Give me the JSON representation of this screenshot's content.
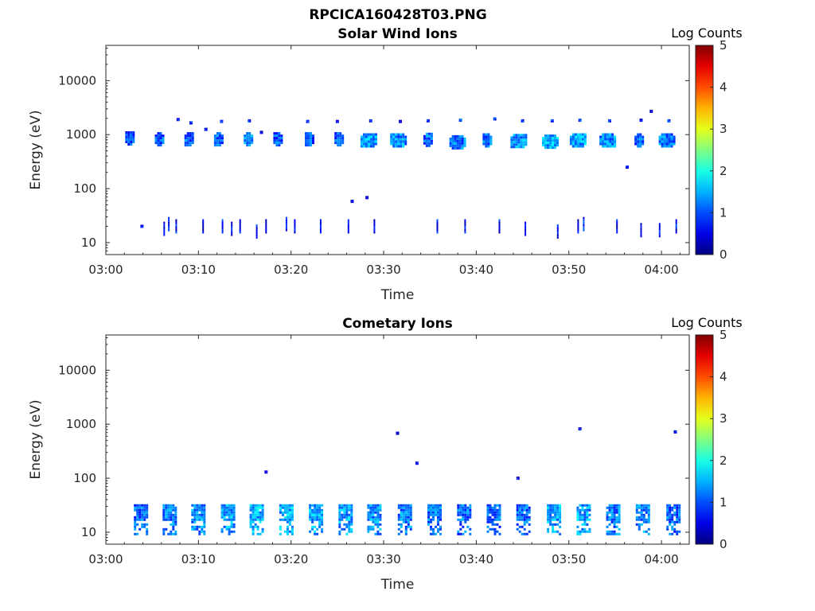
{
  "figure": {
    "title": "RPCICA160428T03.PNG"
  },
  "chart_data": [
    {
      "type": "heatmap",
      "title": "Solar Wind Ions",
      "xlabel": "Time",
      "ylabel": "Energy (eV)",
      "x_ticks": [
        "03:00",
        "03:10",
        "03:20",
        "03:30",
        "03:40",
        "03:50",
        "04:00"
      ],
      "y_ticks": [
        "10",
        "100",
        "1000",
        "10000"
      ],
      "y_scale": "log",
      "x_range_minutes": [
        0,
        63
      ],
      "y_range_eV": [
        6,
        45000
      ],
      "colorbar": {
        "label": "Log Counts",
        "ticks": [
          "0",
          "1",
          "2",
          "3",
          "4",
          "5"
        ],
        "range": [
          0,
          5
        ],
        "colormap": "jet"
      },
      "blobs": [
        {
          "t": 2.6,
          "e": 850,
          "s": "M",
          "v": 1.0
        },
        {
          "t": 5.8,
          "e": 820,
          "s": "M",
          "v": 1.0
        },
        {
          "t": 9.0,
          "e": 820,
          "s": "M",
          "v": 1.1
        },
        {
          "t": 12.2,
          "e": 820,
          "s": "M",
          "v": 1.1
        },
        {
          "t": 15.4,
          "e": 820,
          "s": "M",
          "v": 1.2
        },
        {
          "t": 18.6,
          "e": 820,
          "s": "M",
          "v": 1.0
        },
        {
          "t": 22.0,
          "e": 820,
          "s": "M",
          "v": 1.0
        },
        {
          "t": 25.2,
          "e": 820,
          "s": "M",
          "v": 1.0
        },
        {
          "t": 28.4,
          "e": 780,
          "s": "L",
          "v": 1.4
        },
        {
          "t": 31.6,
          "e": 780,
          "s": "L",
          "v": 1.3
        },
        {
          "t": 34.8,
          "e": 800,
          "s": "M",
          "v": 1.1
        },
        {
          "t": 38.0,
          "e": 720,
          "s": "L",
          "v": 1.2
        },
        {
          "t": 41.2,
          "e": 780,
          "s": "M",
          "v": 1.1
        },
        {
          "t": 44.6,
          "e": 760,
          "s": "L",
          "v": 1.3
        },
        {
          "t": 48.0,
          "e": 740,
          "s": "L",
          "v": 1.5
        },
        {
          "t": 51.0,
          "e": 780,
          "s": "L",
          "v": 1.4
        },
        {
          "t": 54.2,
          "e": 780,
          "s": "L",
          "v": 1.3
        },
        {
          "t": 57.6,
          "e": 780,
          "s": "M",
          "v": 1.1
        },
        {
          "t": 60.6,
          "e": 780,
          "s": "L",
          "v": 1.2
        },
        {
          "t": 7.8,
          "e": 1900,
          "s": "S",
          "v": 0.6
        },
        {
          "t": 9.2,
          "e": 1650,
          "s": "S",
          "v": 0.7
        },
        {
          "t": 12.5,
          "e": 1750,
          "s": "S",
          "v": 0.7
        },
        {
          "t": 15.5,
          "e": 1800,
          "s": "S",
          "v": 0.7
        },
        {
          "t": 21.8,
          "e": 1750,
          "s": "S",
          "v": 0.8
        },
        {
          "t": 25.0,
          "e": 1750,
          "s": "S",
          "v": 0.7
        },
        {
          "t": 28.6,
          "e": 1800,
          "s": "S",
          "v": 0.8
        },
        {
          "t": 31.8,
          "e": 1750,
          "s": "S",
          "v": 0.8
        },
        {
          "t": 34.8,
          "e": 1800,
          "s": "S",
          "v": 0.7
        },
        {
          "t": 38.3,
          "e": 1850,
          "s": "S",
          "v": 0.8
        },
        {
          "t": 42.0,
          "e": 1950,
          "s": "S",
          "v": 0.7
        },
        {
          "t": 45.0,
          "e": 1800,
          "s": "S",
          "v": 0.7
        },
        {
          "t": 48.2,
          "e": 1800,
          "s": "S",
          "v": 0.7
        },
        {
          "t": 51.2,
          "e": 1850,
          "s": "S",
          "v": 0.8
        },
        {
          "t": 54.4,
          "e": 1800,
          "s": "S",
          "v": 0.7
        },
        {
          "t": 57.8,
          "e": 1850,
          "s": "S",
          "v": 0.7
        },
        {
          "t": 60.8,
          "e": 1800,
          "s": "S",
          "v": 0.7
        },
        {
          "t": 10.8,
          "e": 1250,
          "s": "S",
          "v": 0.5
        },
        {
          "t": 16.8,
          "e": 1100,
          "s": "S",
          "v": 0.5
        },
        {
          "t": 58.9,
          "e": 2700,
          "s": "S",
          "v": 0.5
        },
        {
          "t": 56.3,
          "e": 250,
          "s": "S",
          "v": 0.5
        },
        {
          "t": 26.6,
          "e": 58,
          "s": "S",
          "v": 0.5
        },
        {
          "t": 28.2,
          "e": 68,
          "s": "S",
          "v": 0.5
        },
        {
          "t": 3.9,
          "e": 20,
          "s": "S",
          "v": 0.8
        },
        {
          "t": 6.3,
          "e": 18,
          "s": "T",
          "v": 0.6
        },
        {
          "t": 6.8,
          "e": 22,
          "s": "T",
          "v": 0.6
        },
        {
          "t": 7.6,
          "e": 20,
          "s": "T",
          "v": 0.6
        },
        {
          "t": 10.5,
          "e": 20,
          "s": "T",
          "v": 0.6
        },
        {
          "t": 12.6,
          "e": 20,
          "s": "T",
          "v": 0.6
        },
        {
          "t": 13.6,
          "e": 18,
          "s": "T",
          "v": 0.6
        },
        {
          "t": 14.5,
          "e": 20,
          "s": "T",
          "v": 0.6
        },
        {
          "t": 16.3,
          "e": 16,
          "s": "T",
          "v": 0.6
        },
        {
          "t": 17.3,
          "e": 20,
          "s": "T",
          "v": 0.6
        },
        {
          "t": 19.5,
          "e": 22,
          "s": "T",
          "v": 0.6
        },
        {
          "t": 20.4,
          "e": 20,
          "s": "T",
          "v": 0.6
        },
        {
          "t": 23.2,
          "e": 20,
          "s": "T",
          "v": 0.6
        },
        {
          "t": 26.2,
          "e": 20,
          "s": "T",
          "v": 0.6
        },
        {
          "t": 29.0,
          "e": 20,
          "s": "T",
          "v": 0.6
        },
        {
          "t": 35.8,
          "e": 20,
          "s": "T",
          "v": 0.6
        },
        {
          "t": 38.8,
          "e": 20,
          "s": "T",
          "v": 0.6
        },
        {
          "t": 42.5,
          "e": 20,
          "s": "T",
          "v": 0.6
        },
        {
          "t": 45.3,
          "e": 18,
          "s": "T",
          "v": 0.6
        },
        {
          "t": 48.8,
          "e": 16,
          "s": "T",
          "v": 0.6
        },
        {
          "t": 51.0,
          "e": 20,
          "s": "T",
          "v": 0.6
        },
        {
          "t": 51.6,
          "e": 22,
          "s": "T",
          "v": 0.7
        },
        {
          "t": 55.2,
          "e": 20,
          "s": "T",
          "v": 0.6
        },
        {
          "t": 57.8,
          "e": 17,
          "s": "T",
          "v": 0.6
        },
        {
          "t": 59.8,
          "e": 17,
          "s": "T",
          "v": 0.6
        },
        {
          "t": 61.6,
          "e": 20,
          "s": "T",
          "v": 0.6
        }
      ]
    },
    {
      "type": "heatmap",
      "title": "Cometary Ions",
      "xlabel": "Time",
      "ylabel": "Energy (eV)",
      "x_ticks": [
        "03:00",
        "03:10",
        "03:20",
        "03:30",
        "03:40",
        "03:50",
        "04:00"
      ],
      "y_ticks": [
        "10",
        "100",
        "1000",
        "10000"
      ],
      "y_scale": "log",
      "x_range_minutes": [
        0,
        63
      ],
      "y_range_eV": [
        6,
        45000
      ],
      "colorbar": {
        "label": "Log Counts",
        "ticks": [
          "0",
          "1",
          "2",
          "3",
          "4",
          "5"
        ],
        "range": [
          0,
          5
        ],
        "colormap": "jet"
      },
      "blobs": [
        {
          "t": 3.8,
          "e": 17,
          "s": "C",
          "v": 1.1
        },
        {
          "t": 6.9,
          "e": 17,
          "s": "C",
          "v": 1.2
        },
        {
          "t": 10.0,
          "e": 17,
          "s": "C",
          "v": 1.3
        },
        {
          "t": 13.2,
          "e": 17,
          "s": "C",
          "v": 1.4
        },
        {
          "t": 16.3,
          "e": 17,
          "s": "C",
          "v": 1.5
        },
        {
          "t": 19.5,
          "e": 17,
          "s": "C",
          "v": 1.5
        },
        {
          "t": 22.7,
          "e": 17,
          "s": "C",
          "v": 1.4
        },
        {
          "t": 25.9,
          "e": 17,
          "s": "C",
          "v": 1.4
        },
        {
          "t": 29.0,
          "e": 17,
          "s": "C",
          "v": 1.3
        },
        {
          "t": 32.3,
          "e": 17,
          "s": "C",
          "v": 1.2
        },
        {
          "t": 35.5,
          "e": 17,
          "s": "C",
          "v": 1.2
        },
        {
          "t": 38.7,
          "e": 17,
          "s": "C",
          "v": 1.1
        },
        {
          "t": 41.9,
          "e": 17,
          "s": "C",
          "v": 1.1
        },
        {
          "t": 45.1,
          "e": 17,
          "s": "C",
          "v": 1.1
        },
        {
          "t": 48.4,
          "e": 17,
          "s": "C",
          "v": 1.4
        },
        {
          "t": 51.6,
          "e": 17,
          "s": "C",
          "v": 1.4
        },
        {
          "t": 54.8,
          "e": 17,
          "s": "C",
          "v": 1.2
        },
        {
          "t": 58.0,
          "e": 17,
          "s": "C",
          "v": 1.3
        },
        {
          "t": 61.3,
          "e": 17,
          "s": "C",
          "v": 1.1
        },
        {
          "t": 17.3,
          "e": 130,
          "s": "S",
          "v": 0.5
        },
        {
          "t": 31.5,
          "e": 680,
          "s": "S",
          "v": 0.5
        },
        {
          "t": 33.6,
          "e": 190,
          "s": "S",
          "v": 0.5
        },
        {
          "t": 44.5,
          "e": 100,
          "s": "S",
          "v": 0.5
        },
        {
          "t": 51.2,
          "e": 820,
          "s": "S",
          "v": 0.6
        },
        {
          "t": 61.5,
          "e": 720,
          "s": "S",
          "v": 0.5
        }
      ]
    }
  ]
}
